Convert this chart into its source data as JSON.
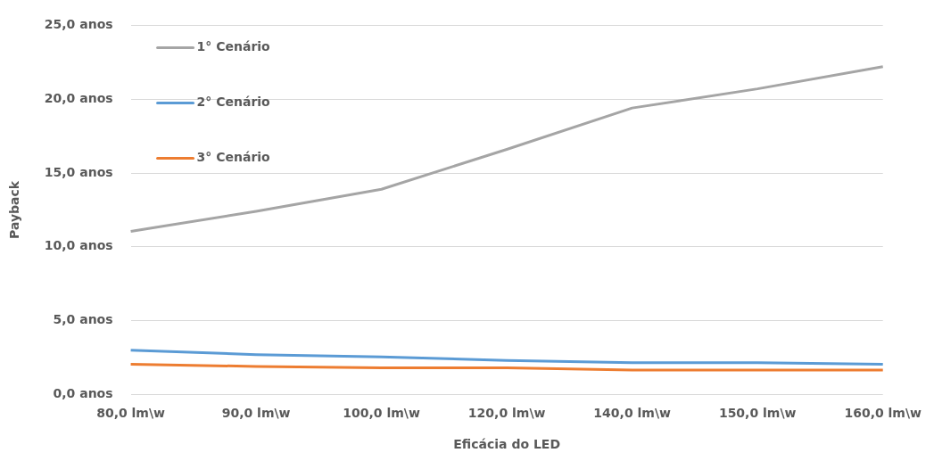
{
  "chart_data": {
    "type": "line",
    "xlabel": "Eficácia do LED",
    "ylabel": "Payback",
    "categories": [
      "80,0 lm\\w",
      "90,0 lm\\w",
      "100,0 lm\\w",
      "120,0 lm\\w",
      "140,0 lm\\w",
      "150,0 lm\\w",
      "160,0 lm\\w"
    ],
    "series": [
      {
        "name": "1° Cenário",
        "color": "#a5a5a5",
        "values": [
          11.05,
          12.4,
          13.9,
          16.6,
          19.4,
          20.7,
          22.2
        ]
      },
      {
        "name": "2° Cenário",
        "color": "#5b9bd5",
        "values": [
          3.0,
          2.7,
          2.55,
          2.3,
          2.15,
          2.15,
          2.05
        ]
      },
      {
        "name": "3° Cenário",
        "color": "#ed7d31",
        "values": [
          2.05,
          1.9,
          1.8,
          1.8,
          1.65,
          1.65,
          1.65
        ]
      }
    ],
    "ylim": [
      0,
      25
    ],
    "yticks": [
      {
        "value": 0,
        "label": "0,0 anos"
      },
      {
        "value": 5,
        "label": "5,0 anos"
      },
      {
        "value": 10,
        "label": "10,0 anos"
      },
      {
        "value": 15,
        "label": "15,0 anos"
      },
      {
        "value": 20,
        "label": "20,0 anos"
      },
      {
        "value": 25,
        "label": "25,0 anos"
      }
    ],
    "grid": "y",
    "legend": "top left",
    "marker": "none",
    "line_style": "solid"
  }
}
